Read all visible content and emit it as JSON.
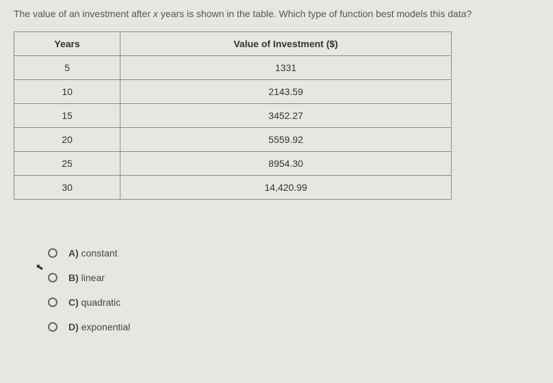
{
  "question": {
    "prefix": "The value of an investment after ",
    "variable": "x",
    "suffix": " years is shown in the table. Which type of function best models this data?"
  },
  "table": {
    "headers": [
      "Years",
      "Value of Investment ($)"
    ],
    "rows": [
      [
        "5",
        "1331"
      ],
      [
        "10",
        "2143.59"
      ],
      [
        "15",
        "3452.27"
      ],
      [
        "20",
        "5559.92"
      ],
      [
        "25",
        "8954.30"
      ],
      [
        "30",
        "14,420.99"
      ]
    ],
    "border_color": "#8a8a85",
    "background_color": "#e8e6e1",
    "text_color": "#333333",
    "font_size": 14
  },
  "options": [
    {
      "letter": "A)",
      "text": "constant"
    },
    {
      "letter": "B)",
      "text": "linear"
    },
    {
      "letter": "C)",
      "text": "quadratic"
    },
    {
      "letter": "D)",
      "text": "exponential"
    }
  ],
  "cursor_glyph": "⬉",
  "colors": {
    "page_background": "#e8e6e1",
    "question_text": "#555555",
    "option_text": "#444444",
    "radio_border": "#666666"
  }
}
